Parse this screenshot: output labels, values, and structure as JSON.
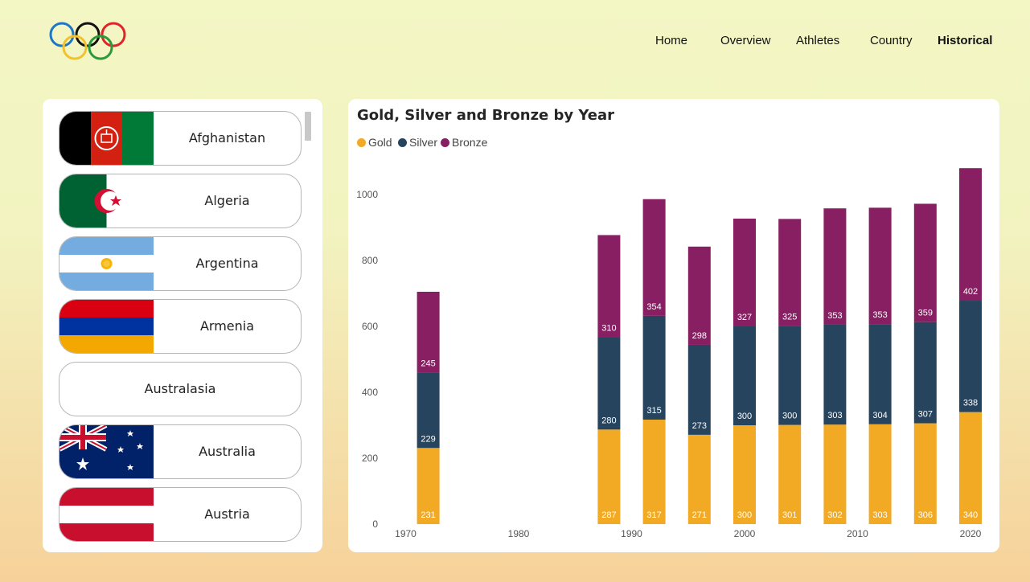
{
  "nav": {
    "items": [
      {
        "label": "Home",
        "active": false
      },
      {
        "label": "Overview",
        "active": false
      },
      {
        "label": "Athletes",
        "active": false
      },
      {
        "label": "Country",
        "active": false
      },
      {
        "label": "Historical",
        "active": true
      }
    ]
  },
  "countries": [
    {
      "name": "Afghanistan",
      "flag": "afghanistan-flag"
    },
    {
      "name": "Algeria",
      "flag": "algeria-flag"
    },
    {
      "name": "Argentina",
      "flag": "argentina-flag"
    },
    {
      "name": "Armenia",
      "flag": "armenia-flag"
    },
    {
      "name": "Australasia",
      "flag": null
    },
    {
      "name": "Australia",
      "flag": "australia-flag"
    },
    {
      "name": "Austria",
      "flag": "austria-flag"
    }
  ],
  "colors": {
    "gold": "#f2aa24",
    "silver": "#27445f",
    "bronze": "#871f62"
  },
  "chart_data": {
    "type": "bar",
    "stacked": true,
    "title": "Gold, Silver and Bronze by Year",
    "xlabel": "",
    "ylabel": "",
    "x_ticks": [
      1970,
      1980,
      1990,
      2000,
      2010,
      2020
    ],
    "y_ticks": [
      0,
      200,
      400,
      600,
      800,
      1000
    ],
    "ylim": [
      0,
      1100
    ],
    "xlim": [
      1966.5,
      2023.5
    ],
    "legend_position": "top-left",
    "categories": [
      1972,
      1988,
      1992,
      1996,
      2000,
      2004,
      2008,
      2012,
      2016,
      2020
    ],
    "series": [
      {
        "name": "Gold",
        "color": "#f2aa24",
        "values": [
          231,
          287,
          317,
          271,
          300,
          301,
          302,
          303,
          306,
          340
        ]
      },
      {
        "name": "Silver",
        "color": "#27445f",
        "values": [
          229,
          280,
          315,
          273,
          300,
          300,
          303,
          304,
          307,
          338
        ]
      },
      {
        "name": "Bronze",
        "color": "#871f62",
        "values": [
          245,
          310,
          354,
          298,
          327,
          325,
          353,
          353,
          359,
          402
        ]
      }
    ]
  }
}
